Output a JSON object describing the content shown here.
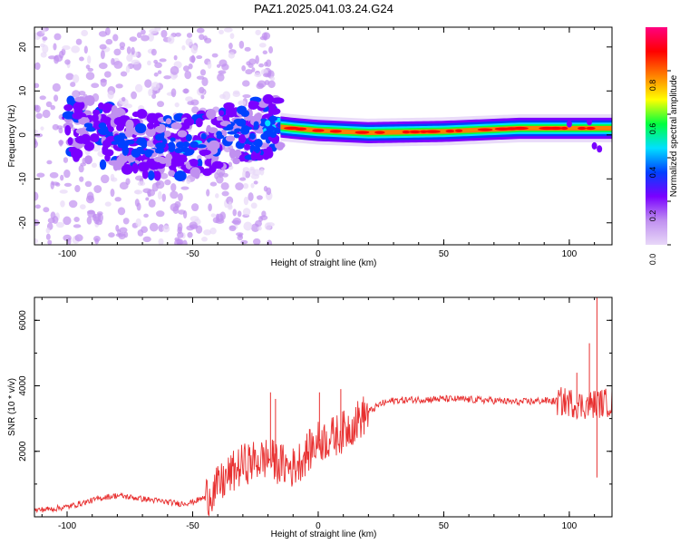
{
  "title": "PAZ1.2025.041.03.24.G24",
  "chart_data": [
    {
      "type": "heatmap",
      "xlabel": "Height of straight line (km)",
      "ylabel": "Frequency (Hz)",
      "xlim": [
        -113,
        117
      ],
      "ylim": [
        -25,
        24.5
      ],
      "x_ticks": [
        "-100",
        "-50",
        "0",
        "50",
        "100"
      ],
      "y_ticks": [
        "-20",
        "-10",
        "0",
        "10",
        "20"
      ],
      "colorbar": {
        "label": "Normalized spectral amplitude",
        "range": [
          0,
          1
        ],
        "ticks": [
          "0.0",
          "0.2",
          "0.4",
          "0.6",
          "0.8"
        ],
        "colors": [
          "#e8d8f8",
          "#c090f0",
          "#7a00ff",
          "#0040ff",
          "#00e0ff",
          "#00ff40",
          "#ffff00",
          "#ff8000",
          "#ff0000",
          "#ff0080"
        ]
      },
      "ridge": [
        {
          "x": -95,
          "y": 2.0
        },
        {
          "x": -85,
          "y": 0.0
        },
        {
          "x": -75,
          "y": -1.5
        },
        {
          "x": -65,
          "y": -2.5
        },
        {
          "x": -55,
          "y": -3.0
        },
        {
          "x": -45,
          "y": -2.0
        },
        {
          "x": -35,
          "y": 0.5
        },
        {
          "x": -25,
          "y": 1.0
        },
        {
          "x": -18,
          "y": 2.0
        },
        {
          "x": -10,
          "y": 1.5
        },
        {
          "x": 0,
          "y": 1.0
        },
        {
          "x": 20,
          "y": 0.5
        },
        {
          "x": 50,
          "y": 0.8
        },
        {
          "x": 80,
          "y": 1.5
        },
        {
          "x": 117,
          "y": 1.5
        }
      ]
    },
    {
      "type": "line",
      "xlabel": "Height of straight line (km)",
      "ylabel": "SNR (10 * v/v)",
      "xlim": [
        -113,
        117
      ],
      "ylim": [
        0,
        6700
      ],
      "x_ticks": [
        "-100",
        "-50",
        "0",
        "50",
        "100"
      ],
      "y_ticks": [
        "2000",
        "4000",
        "6000"
      ],
      "color": "#e83030",
      "series": [
        {
          "values": [
            {
              "x": -113,
              "y": 200
            },
            {
              "x": -105,
              "y": 250
            },
            {
              "x": -100,
              "y": 300
            },
            {
              "x": -95,
              "y": 400
            },
            {
              "x": -90,
              "y": 500
            },
            {
              "x": -85,
              "y": 600
            },
            {
              "x": -80,
              "y": 650
            },
            {
              "x": -75,
              "y": 600
            },
            {
              "x": -70,
              "y": 550
            },
            {
              "x": -65,
              "y": 500
            },
            {
              "x": -60,
              "y": 450
            },
            {
              "x": -55,
              "y": 400
            },
            {
              "x": -50,
              "y": 450
            },
            {
              "x": -45,
              "y": 600
            },
            {
              "x": -40,
              "y": 900
            },
            {
              "x": -35,
              "y": 1300
            },
            {
              "x": -30,
              "y": 1600
            },
            {
              "x": -25,
              "y": 1700
            },
            {
              "x": -20,
              "y": 1800
            },
            {
              "x": -15,
              "y": 1600
            },
            {
              "x": -10,
              "y": 1500
            },
            {
              "x": -5,
              "y": 1900
            },
            {
              "x": 0,
              "y": 2300
            },
            {
              "x": 5,
              "y": 2400
            },
            {
              "x": 10,
              "y": 2600
            },
            {
              "x": 15,
              "y": 2900
            },
            {
              "x": 20,
              "y": 3200
            },
            {
              "x": 25,
              "y": 3450
            },
            {
              "x": 30,
              "y": 3550
            },
            {
              "x": 40,
              "y": 3580
            },
            {
              "x": 50,
              "y": 3600
            },
            {
              "x": 60,
              "y": 3580
            },
            {
              "x": 70,
              "y": 3550
            },
            {
              "x": 80,
              "y": 3500
            },
            {
              "x": 90,
              "y": 3550
            },
            {
              "x": 100,
              "y": 3500
            },
            {
              "x": 105,
              "y": 3400
            },
            {
              "x": 110,
              "y": 3450
            },
            {
              "x": 117,
              "y": 3500
            }
          ]
        }
      ],
      "spikes": [
        {
          "x": -19,
          "y": 3800
        },
        {
          "x": -17,
          "y": 3600
        },
        {
          "x": 0.5,
          "y": 3800
        },
        {
          "x": 9,
          "y": 3900
        },
        {
          "x": 103,
          "y": 4400
        },
        {
          "x": 108,
          "y": 5300
        },
        {
          "x": 111,
          "y": 6700
        },
        {
          "x": 111,
          "y": 1200
        }
      ]
    }
  ]
}
